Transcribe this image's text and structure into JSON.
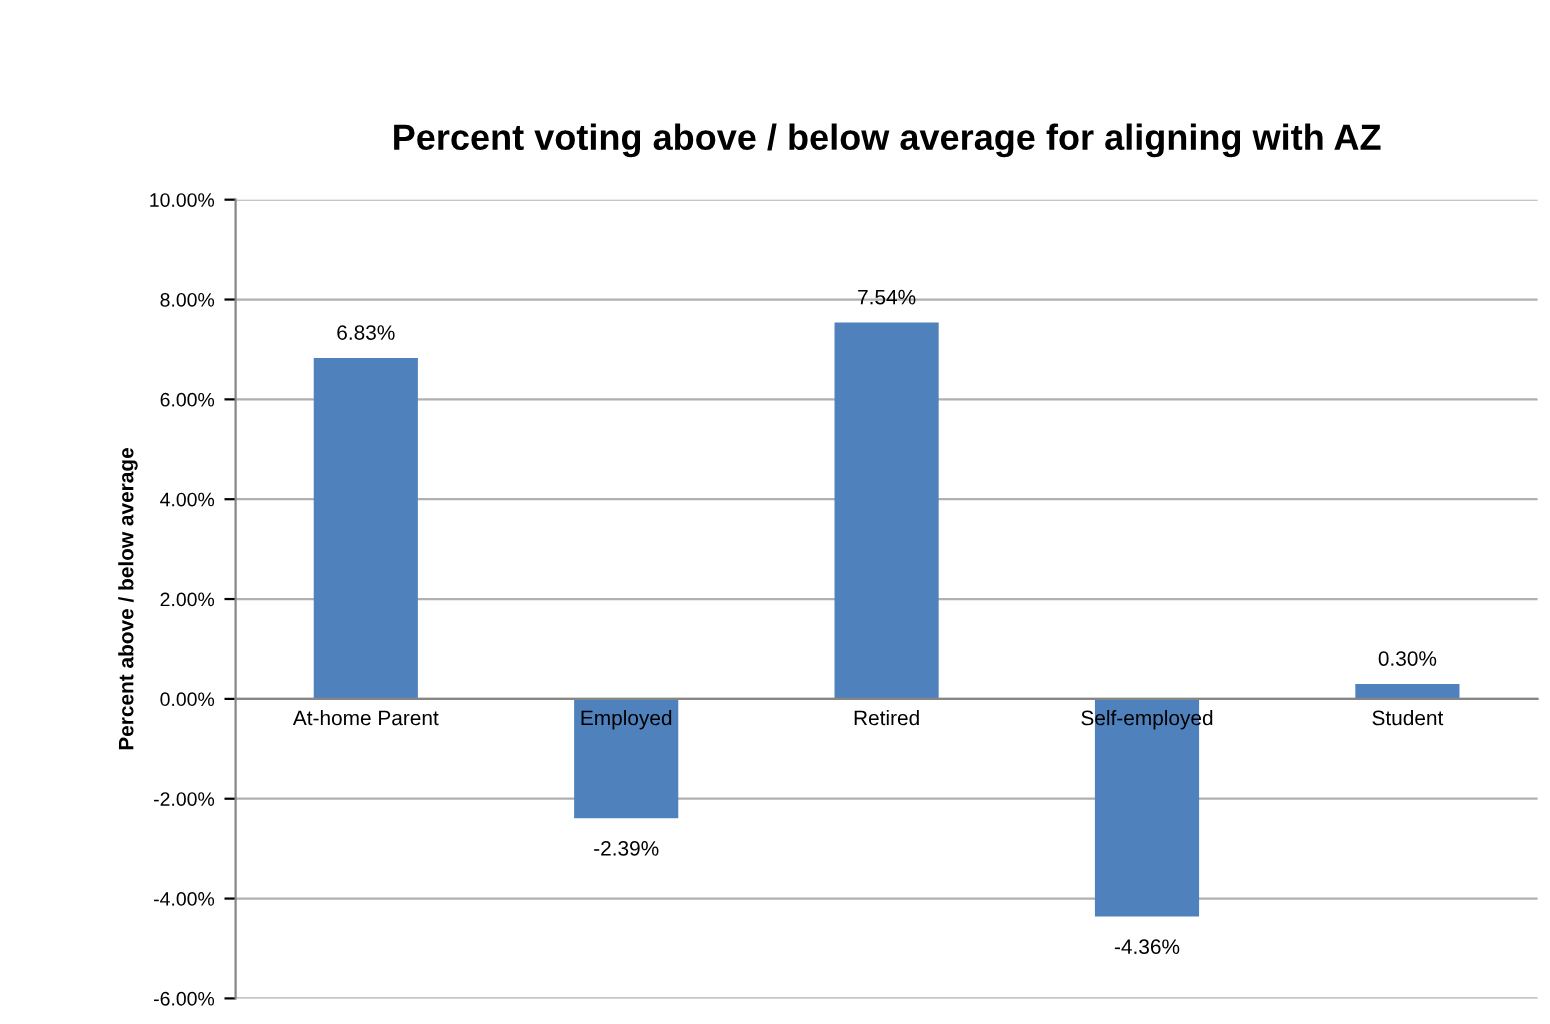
{
  "chart_data": {
    "type": "bar",
    "title": "Percent voting above / below average for aligning with AZ",
    "ylabel": "Percent above / below average",
    "categories": [
      "At-home Parent",
      "Employed",
      "Retired",
      "Self-employed",
      "Student"
    ],
    "values": [
      6.83,
      -2.39,
      7.54,
      -4.36,
      0.3
    ],
    "value_labels": [
      "6.83%",
      "-2.39%",
      "7.54%",
      "-4.36%",
      "0.30%"
    ],
    "color": "#4f81bd",
    "ylim": [
      -6,
      10
    ],
    "yticks": [
      {
        "value": -6,
        "label": "-6.00%"
      },
      {
        "value": -4,
        "label": "-4.00%"
      },
      {
        "value": -2,
        "label": "-2.00%"
      },
      {
        "value": 0,
        "label": "0.00%"
      },
      {
        "value": 2,
        "label": "2.00%"
      },
      {
        "value": 4,
        "label": "4.00%"
      },
      {
        "value": 6,
        "label": "6.00%"
      },
      {
        "value": 8,
        "label": "8.00%"
      },
      {
        "value": 10,
        "label": "10.00%"
      }
    ],
    "grid": "y",
    "legend": false
  }
}
